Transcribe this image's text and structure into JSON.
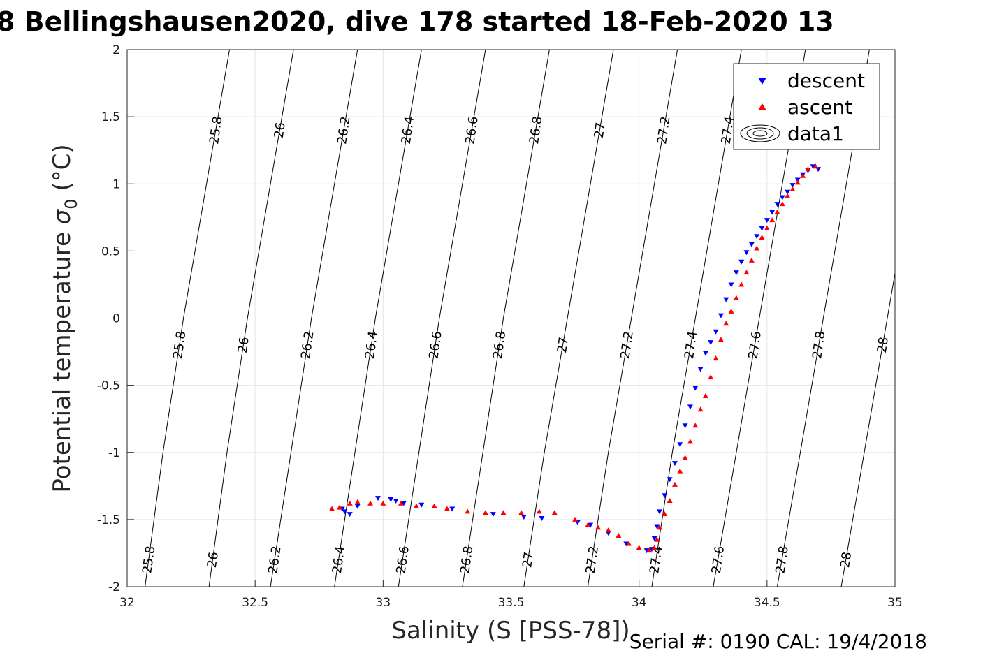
{
  "title": "8 Bellingshausen2020, dive 178 started 18-Feb-2020 13",
  "footer": "Serial #: 0190  CAL: 19/4/2018",
  "chart_data": {
    "type": "scatter",
    "title": "8 Bellingshausen2020, dive 178 started 18-Feb-2020 13",
    "xlabel": "Salinity (S [PSS-78])",
    "ylabel_main": "Potential temperature ",
    "ylabel_sigma": "σ",
    "ylabel_sub": "0",
    "ylabel_unit": " (°C)",
    "xlim": [
      32,
      35
    ],
    "ylim": [
      -2,
      2
    ],
    "grid": true,
    "legend_position": "top-right",
    "x_ticks": [
      "32",
      "32.5",
      "33",
      "33.5",
      "34",
      "34.5",
      "35"
    ],
    "y_ticks": [
      "2",
      "1.5",
      "1",
      "0.5",
      "0",
      "-0.5",
      "-1",
      "-1.5",
      "-2"
    ],
    "legend": [
      "descent",
      "ascent",
      "data1"
    ],
    "isopycnals": [
      {
        "label": "25.8",
        "points": [
          [
            32.07,
            -2
          ],
          [
            32.14,
            -1
          ],
          [
            32.22,
            0
          ],
          [
            32.31,
            1
          ],
          [
            32.4,
            2
          ]
        ]
      },
      {
        "label": "26",
        "points": [
          [
            32.32,
            -2
          ],
          [
            32.39,
            -1
          ],
          [
            32.47,
            0
          ],
          [
            32.56,
            1
          ],
          [
            32.65,
            2
          ]
        ]
      },
      {
        "label": "26.2",
        "points": [
          [
            32.56,
            -2
          ],
          [
            32.64,
            -1
          ],
          [
            32.72,
            0
          ],
          [
            32.81,
            1
          ],
          [
            32.9,
            2
          ]
        ]
      },
      {
        "label": "26.4",
        "points": [
          [
            32.81,
            -2
          ],
          [
            32.89,
            -1
          ],
          [
            32.97,
            0
          ],
          [
            33.06,
            1
          ],
          [
            33.15,
            2
          ]
        ]
      },
      {
        "label": "26.6",
        "points": [
          [
            33.06,
            -2
          ],
          [
            33.14,
            -1
          ],
          [
            33.22,
            0
          ],
          [
            33.31,
            1
          ],
          [
            33.4,
            2
          ]
        ]
      },
      {
        "label": "26.8",
        "points": [
          [
            33.31,
            -2
          ],
          [
            33.39,
            -1
          ],
          [
            33.47,
            0
          ],
          [
            33.56,
            1
          ],
          [
            33.65,
            2
          ]
        ]
      },
      {
        "label": "27",
        "points": [
          [
            33.55,
            -2
          ],
          [
            33.63,
            -1
          ],
          [
            33.72,
            0
          ],
          [
            33.81,
            1
          ],
          [
            33.9,
            2
          ]
        ]
      },
      {
        "label": "27.2",
        "points": [
          [
            33.8,
            -2
          ],
          [
            33.88,
            -1
          ],
          [
            33.97,
            0
          ],
          [
            34.06,
            1
          ],
          [
            34.15,
            2
          ]
        ]
      },
      {
        "label": "27.4",
        "points": [
          [
            34.05,
            -2
          ],
          [
            34.13,
            -1
          ],
          [
            34.22,
            0
          ],
          [
            34.31,
            1
          ],
          [
            34.4,
            2
          ]
        ]
      },
      {
        "label": "27.6",
        "points": [
          [
            34.29,
            -2
          ],
          [
            34.38,
            -1
          ],
          [
            34.47,
            0
          ],
          [
            34.56,
            1
          ],
          [
            34.65,
            2
          ]
        ]
      },
      {
        "label": "27.8",
        "points": [
          [
            34.54,
            -2
          ],
          [
            34.63,
            -1
          ],
          [
            34.72,
            0
          ],
          [
            34.81,
            1
          ],
          [
            34.9,
            2
          ]
        ]
      },
      {
        "label": "28",
        "points": [
          [
            34.79,
            -2
          ],
          [
            34.88,
            -1
          ],
          [
            34.97,
            0
          ],
          [
            35.06,
            1
          ],
          [
            35.15,
            2
          ]
        ]
      }
    ],
    "series": [
      {
        "name": "descent",
        "color": "#0000ff",
        "marker": "triangle-down",
        "points": [
          [
            34.7,
            1.11
          ],
          [
            34.68,
            1.13
          ],
          [
            34.66,
            1.1
          ],
          [
            34.64,
            1.07
          ],
          [
            34.62,
            1.03
          ],
          [
            34.6,
            0.99
          ],
          [
            34.58,
            0.94
          ],
          [
            34.56,
            0.9
          ],
          [
            34.54,
            0.85
          ],
          [
            34.52,
            0.79
          ],
          [
            34.5,
            0.73
          ],
          [
            34.48,
            0.67
          ],
          [
            34.46,
            0.61
          ],
          [
            34.44,
            0.55
          ],
          [
            34.42,
            0.49
          ],
          [
            34.4,
            0.42
          ],
          [
            34.38,
            0.34
          ],
          [
            34.36,
            0.25
          ],
          [
            34.34,
            0.14
          ],
          [
            34.32,
            0.02
          ],
          [
            34.3,
            -0.1
          ],
          [
            34.28,
            -0.18
          ],
          [
            34.26,
            -0.26
          ],
          [
            34.24,
            -0.38
          ],
          [
            34.22,
            -0.52
          ],
          [
            34.2,
            -0.66
          ],
          [
            34.18,
            -0.8
          ],
          [
            34.16,
            -0.94
          ],
          [
            34.14,
            -1.08
          ],
          [
            34.12,
            -1.2
          ],
          [
            34.1,
            -1.32
          ],
          [
            34.08,
            -1.44
          ],
          [
            34.07,
            -1.55
          ],
          [
            34.06,
            -1.64
          ],
          [
            34.05,
            -1.72
          ],
          [
            34.03,
            -1.73
          ],
          [
            33.95,
            -1.68
          ],
          [
            33.88,
            -1.6
          ],
          [
            33.81,
            -1.54
          ],
          [
            33.76,
            -1.52
          ],
          [
            33.62,
            -1.49
          ],
          [
            33.55,
            -1.48
          ],
          [
            33.43,
            -1.46
          ],
          [
            33.27,
            -1.42
          ],
          [
            33.15,
            -1.39
          ],
          [
            33.08,
            -1.38
          ],
          [
            33.05,
            -1.36
          ],
          [
            33.03,
            -1.35
          ],
          [
            32.98,
            -1.34
          ],
          [
            32.9,
            -1.4
          ],
          [
            32.87,
            -1.46
          ],
          [
            32.85,
            -1.44
          ],
          [
            32.84,
            -1.42
          ]
        ]
      },
      {
        "name": "ascent",
        "color": "#ff0000",
        "marker": "triangle-up",
        "points": [
          [
            34.69,
            1.13
          ],
          [
            34.66,
            1.11
          ],
          [
            34.64,
            1.06
          ],
          [
            34.62,
            1.01
          ],
          [
            34.6,
            0.96
          ],
          [
            34.58,
            0.91
          ],
          [
            34.56,
            0.85
          ],
          [
            34.54,
            0.79
          ],
          [
            34.52,
            0.73
          ],
          [
            34.5,
            0.67
          ],
          [
            34.48,
            0.6
          ],
          [
            34.46,
            0.52
          ],
          [
            34.44,
            0.43
          ],
          [
            34.42,
            0.34
          ],
          [
            34.4,
            0.25
          ],
          [
            34.38,
            0.15
          ],
          [
            34.36,
            0.05
          ],
          [
            34.34,
            -0.04
          ],
          [
            34.32,
            -0.16
          ],
          [
            34.3,
            -0.3
          ],
          [
            34.28,
            -0.44
          ],
          [
            34.26,
            -0.58
          ],
          [
            34.24,
            -0.68
          ],
          [
            34.22,
            -0.8
          ],
          [
            34.2,
            -0.92
          ],
          [
            34.18,
            -1.04
          ],
          [
            34.16,
            -1.14
          ],
          [
            34.14,
            -1.24
          ],
          [
            34.12,
            -1.36
          ],
          [
            34.1,
            -1.46
          ],
          [
            34.08,
            -1.56
          ],
          [
            34.07,
            -1.65
          ],
          [
            34.06,
            -1.71
          ],
          [
            34.04,
            -1.73
          ],
          [
            34.0,
            -1.71
          ],
          [
            33.96,
            -1.68
          ],
          [
            33.92,
            -1.62
          ],
          [
            33.88,
            -1.58
          ],
          [
            33.84,
            -1.56
          ],
          [
            33.8,
            -1.54
          ],
          [
            33.75,
            -1.5
          ],
          [
            33.67,
            -1.45
          ],
          [
            33.61,
            -1.44
          ],
          [
            33.54,
            -1.45
          ],
          [
            33.47,
            -1.45
          ],
          [
            33.4,
            -1.45
          ],
          [
            33.33,
            -1.44
          ],
          [
            33.25,
            -1.42
          ],
          [
            33.2,
            -1.4
          ],
          [
            33.13,
            -1.4
          ],
          [
            33.07,
            -1.38
          ],
          [
            33.0,
            -1.38
          ],
          [
            32.95,
            -1.38
          ],
          [
            32.9,
            -1.37
          ],
          [
            32.87,
            -1.38
          ],
          [
            32.83,
            -1.41
          ],
          [
            32.8,
            -1.42
          ]
        ]
      }
    ]
  }
}
